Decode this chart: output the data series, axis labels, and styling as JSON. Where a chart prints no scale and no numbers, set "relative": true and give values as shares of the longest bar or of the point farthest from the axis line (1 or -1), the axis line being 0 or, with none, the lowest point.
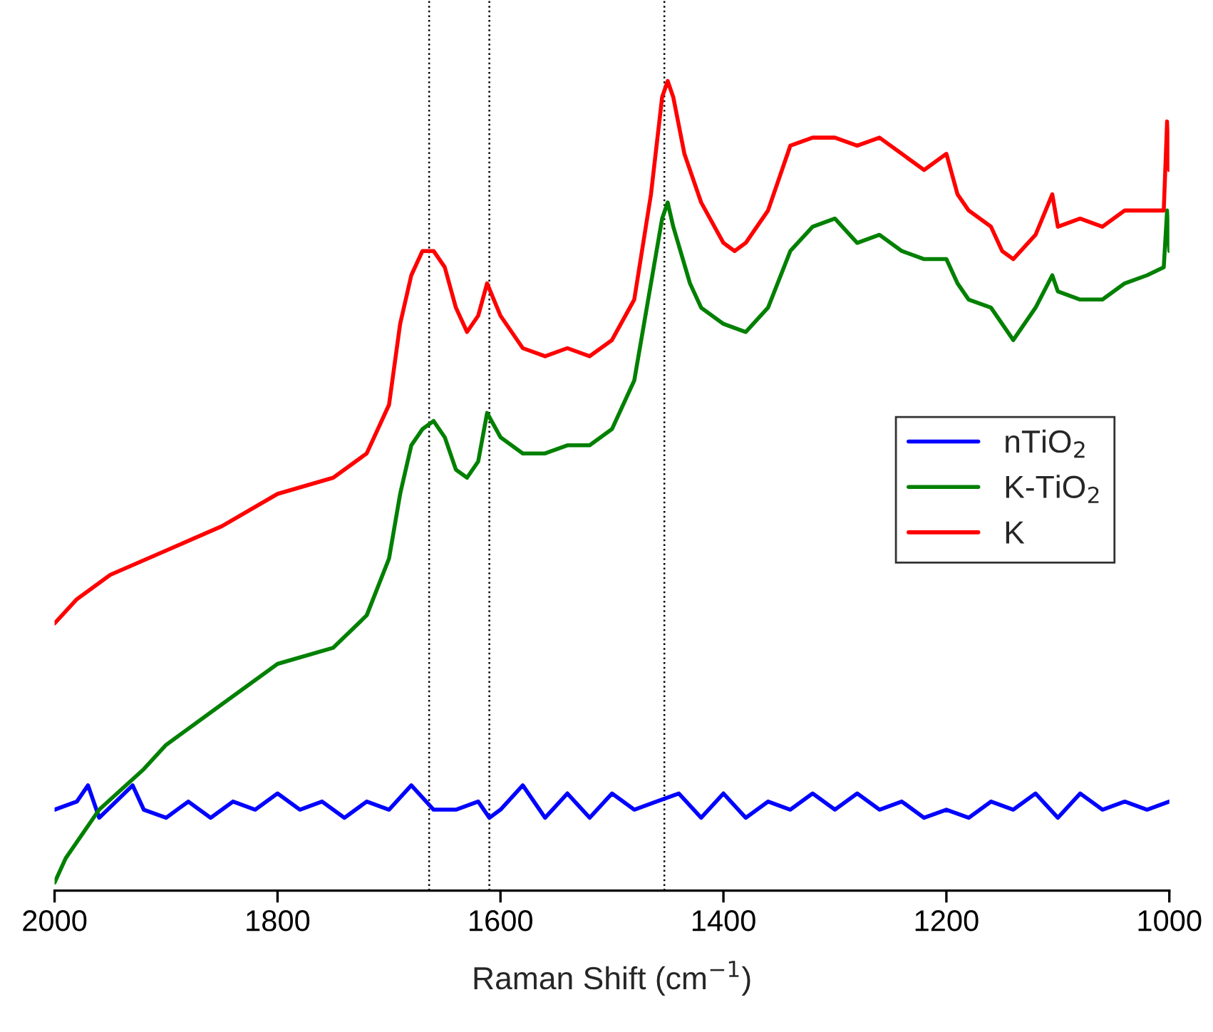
{
  "chart_data": {
    "type": "line",
    "relative": true,
    "xlabel": "Raman Shift (cm$^{−1}$)",
    "xlim": [
      2000,
      1000
    ],
    "xticks": [
      2000,
      1800,
      1600,
      1400,
      1200,
      1000
    ],
    "legend": "right",
    "line_style": "solid",
    "grid": false,
    "ref_lines": [
      {
        "axis": "x",
        "value": 1664,
        "color": "#000000",
        "line_style": "dotted"
      },
      {
        "axis": "x",
        "value": 1610,
        "color": "#000000",
        "line_style": "dotted"
      },
      {
        "axis": "x",
        "value": 1453,
        "color": "#000000",
        "line_style": "dotted"
      }
    ],
    "series": [
      {
        "name": "nTiO$_{2}$",
        "color": "#0000ff",
        "x": [
          2000,
          1980,
          1970,
          1960,
          1930,
          1920,
          1900,
          1880,
          1860,
          1840,
          1820,
          1800,
          1780,
          1760,
          1740,
          1720,
          1700,
          1680,
          1660,
          1640,
          1620,
          1610,
          1600,
          1580,
          1560,
          1540,
          1520,
          1500,
          1480,
          1460,
          1440,
          1420,
          1400,
          1380,
          1360,
          1340,
          1320,
          1300,
          1280,
          1260,
          1240,
          1220,
          1200,
          1180,
          1160,
          1140,
          1120,
          1100,
          1080,
          1060,
          1040,
          1020,
          1000
        ],
        "values": [
          0.1,
          0.11,
          0.13,
          0.09,
          0.13,
          0.1,
          0.09,
          0.11,
          0.09,
          0.11,
          0.1,
          0.12,
          0.1,
          0.11,
          0.09,
          0.11,
          0.1,
          0.13,
          0.1,
          0.1,
          0.11,
          0.09,
          0.1,
          0.13,
          0.09,
          0.12,
          0.09,
          0.12,
          0.1,
          0.11,
          0.12,
          0.09,
          0.12,
          0.09,
          0.11,
          0.1,
          0.12,
          0.1,
          0.12,
          0.1,
          0.11,
          0.09,
          0.1,
          0.09,
          0.11,
          0.1,
          0.12,
          0.09,
          0.12,
          0.1,
          0.11,
          0.1,
          0.11
        ]
      },
      {
        "name": "K-TiO$_{2}$",
        "color": "#008000",
        "x": [
          2000,
          1990,
          1960,
          1920,
          1900,
          1850,
          1800,
          1750,
          1720,
          1700,
          1690,
          1680,
          1670,
          1660,
          1650,
          1640,
          1630,
          1620,
          1612,
          1600,
          1580,
          1560,
          1540,
          1520,
          1500,
          1480,
          1465,
          1455,
          1450,
          1445,
          1430,
          1420,
          1400,
          1380,
          1360,
          1340,
          1320,
          1300,
          1280,
          1260,
          1240,
          1220,
          1200,
          1190,
          1180,
          1160,
          1140,
          1120,
          1105,
          1100,
          1080,
          1060,
          1040,
          1020,
          1005,
          1002,
          1000
        ],
        "values": [
          0.01,
          0.04,
          0.1,
          0.15,
          0.18,
          0.23,
          0.28,
          0.3,
          0.34,
          0.41,
          0.49,
          0.55,
          0.57,
          0.58,
          0.56,
          0.52,
          0.51,
          0.53,
          0.59,
          0.56,
          0.54,
          0.54,
          0.55,
          0.55,
          0.57,
          0.63,
          0.75,
          0.83,
          0.85,
          0.82,
          0.75,
          0.72,
          0.7,
          0.69,
          0.72,
          0.79,
          0.82,
          0.83,
          0.8,
          0.81,
          0.79,
          0.78,
          0.78,
          0.75,
          0.73,
          0.72,
          0.68,
          0.72,
          0.76,
          0.74,
          0.73,
          0.73,
          0.75,
          0.76,
          0.77,
          0.84,
          0.79
        ]
      },
      {
        "name": "K",
        "color": "#ff0000",
        "x": [
          2000,
          1980,
          1950,
          1900,
          1850,
          1800,
          1750,
          1720,
          1700,
          1690,
          1680,
          1670,
          1660,
          1650,
          1640,
          1630,
          1620,
          1612,
          1600,
          1580,
          1560,
          1540,
          1520,
          1500,
          1480,
          1465,
          1455,
          1450,
          1445,
          1435,
          1420,
          1400,
          1390,
          1380,
          1360,
          1340,
          1320,
          1300,
          1280,
          1260,
          1240,
          1220,
          1200,
          1190,
          1180,
          1160,
          1150,
          1140,
          1120,
          1105,
          1100,
          1080,
          1060,
          1040,
          1020,
          1005,
          1002,
          1000
        ],
        "values": [
          0.33,
          0.36,
          0.39,
          0.42,
          0.45,
          0.49,
          0.51,
          0.54,
          0.6,
          0.7,
          0.76,
          0.79,
          0.79,
          0.77,
          0.72,
          0.69,
          0.71,
          0.75,
          0.71,
          0.67,
          0.66,
          0.67,
          0.66,
          0.68,
          0.73,
          0.86,
          0.98,
          1.0,
          0.98,
          0.91,
          0.85,
          0.8,
          0.79,
          0.8,
          0.84,
          0.92,
          0.93,
          0.93,
          0.92,
          0.93,
          0.91,
          0.89,
          0.91,
          0.86,
          0.84,
          0.82,
          0.79,
          0.78,
          0.81,
          0.86,
          0.82,
          0.83,
          0.82,
          0.84,
          0.84,
          0.84,
          0.95,
          0.89
        ]
      }
    ]
  }
}
